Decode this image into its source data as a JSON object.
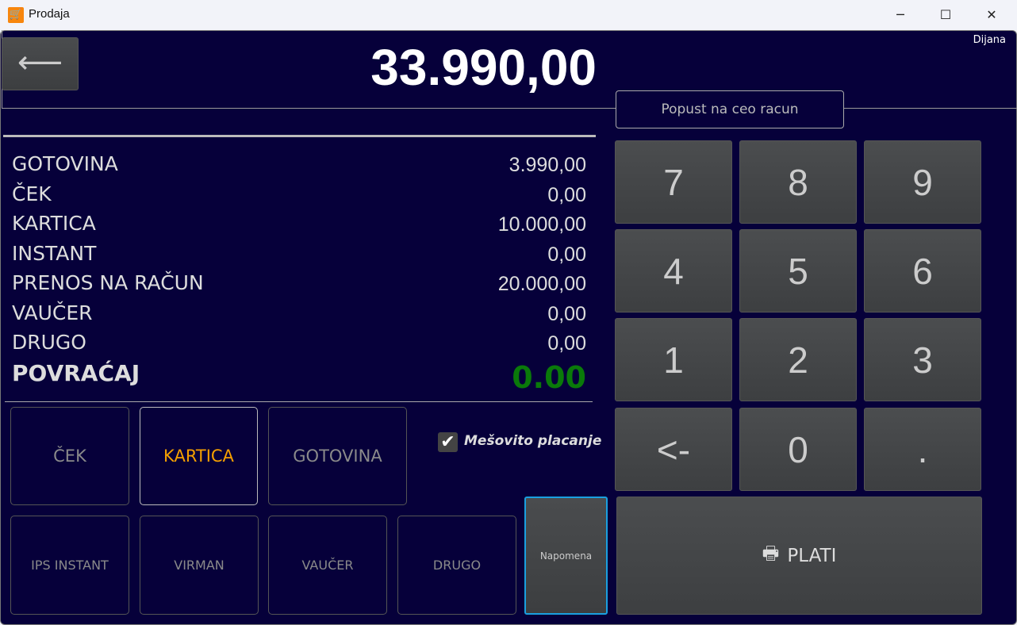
{
  "window": {
    "title": "Prodaja",
    "icon": "shopping-cart-icon",
    "minimize": "─",
    "maximize": "☐",
    "close": "✕"
  },
  "header": {
    "back_icon": "arrow-left-icon",
    "back_glyph": "⟵",
    "amount": "33.990,00",
    "user": "Dijana",
    "discount_button": "Popust na ceo racun"
  },
  "payments": [
    {
      "label": "GOTOVINA",
      "value": "3.990,00"
    },
    {
      "label": "ČEK",
      "value": "0,00"
    },
    {
      "label": "KARTICA",
      "value": "10.000,00"
    },
    {
      "label": "INSTANT",
      "value": "0,00"
    },
    {
      "label": "PRENOS NA RAČUN",
      "value": "20.000,00"
    },
    {
      "label": "VAUČER",
      "value": "0,00"
    },
    {
      "label": "DRUGO",
      "value": "0,00"
    }
  ],
  "change": {
    "label": "POVRAĆAJ",
    "value": "0.00",
    "color": "#0a7a0a"
  },
  "methods_row1": [
    {
      "label": "ČEK"
    },
    {
      "label": "KARTICA",
      "selected": true
    },
    {
      "label": "GOTOVINA"
    }
  ],
  "methods_row2": [
    {
      "label": "IPS INSTANT"
    },
    {
      "label": "VIRMAN"
    },
    {
      "label": "VAUČER"
    },
    {
      "label": "DRUGO"
    }
  ],
  "mixed_payment": {
    "label": "Mešovito placanje",
    "checked": true
  },
  "note_button": "Napomena",
  "keypad": [
    "7",
    "8",
    "9",
    "4",
    "5",
    "6",
    "1",
    "2",
    "3",
    "<-",
    "0",
    "."
  ],
  "pay_button": {
    "label": "PLATI",
    "icon": "printer-icon"
  },
  "colors": {
    "background": "#06003a",
    "selected": "#f5a000",
    "focus": "#1aa0e0"
  }
}
